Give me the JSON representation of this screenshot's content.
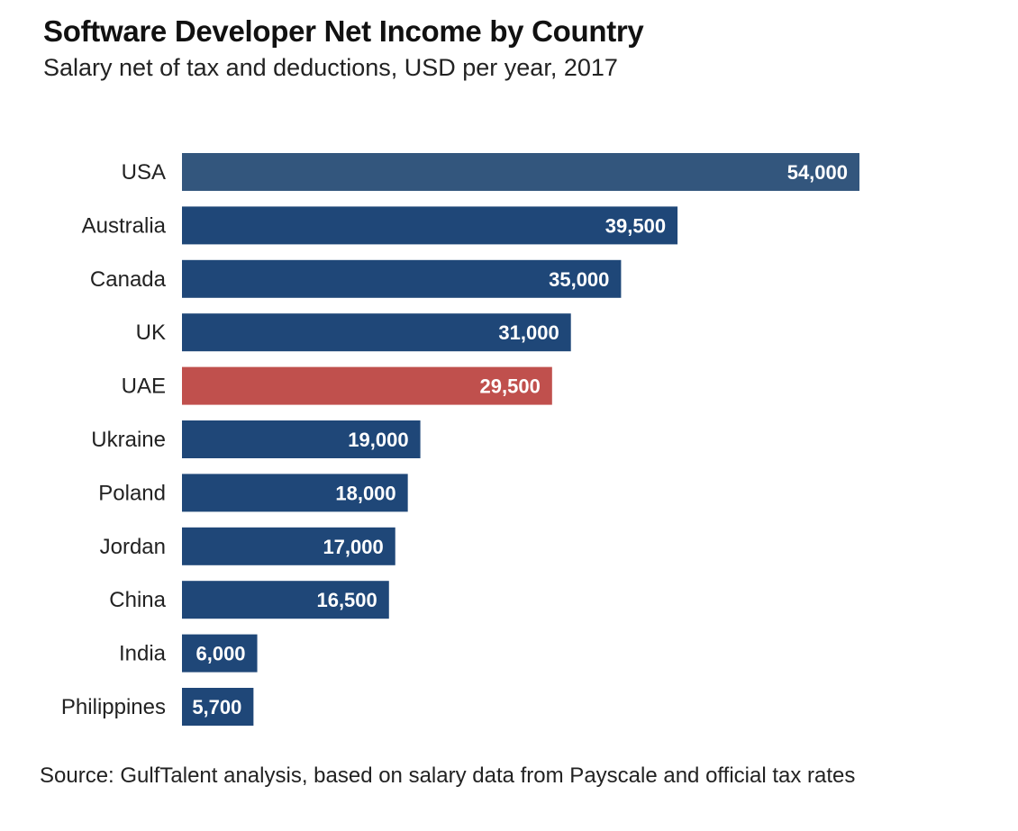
{
  "chart_data": {
    "type": "bar",
    "orientation": "horizontal",
    "title": "Software Developer Net Income by Country",
    "subtitle": "Salary net of tax and deductions, USD per year, 2017",
    "source": "Source: GulfTalent analysis, based on salary data from Payscale and official tax rates",
    "categories": [
      "USA",
      "Australia",
      "Canada",
      "UK",
      "UAE",
      "Ukraine",
      "Poland",
      "Jordan",
      "China",
      "India",
      "Philippines"
    ],
    "values": [
      54000,
      39500,
      35000,
      31000,
      29500,
      19000,
      18000,
      17000,
      16500,
      6000,
      5700
    ],
    "labels": [
      "54,000",
      "39,500",
      "35,000",
      "31,000",
      "29,500",
      "19,000",
      "18,000",
      "17,000",
      "16,500",
      "6,000",
      "5,700"
    ],
    "colors": [
      "#33567d",
      "#1f4778",
      "#1f4778",
      "#1f4778",
      "#c0504d",
      "#1f4778",
      "#1f4778",
      "#1f4778",
      "#1f4778",
      "#1f4778",
      "#1f4778"
    ],
    "xlim": [
      0,
      54000
    ],
    "grid": false
  }
}
